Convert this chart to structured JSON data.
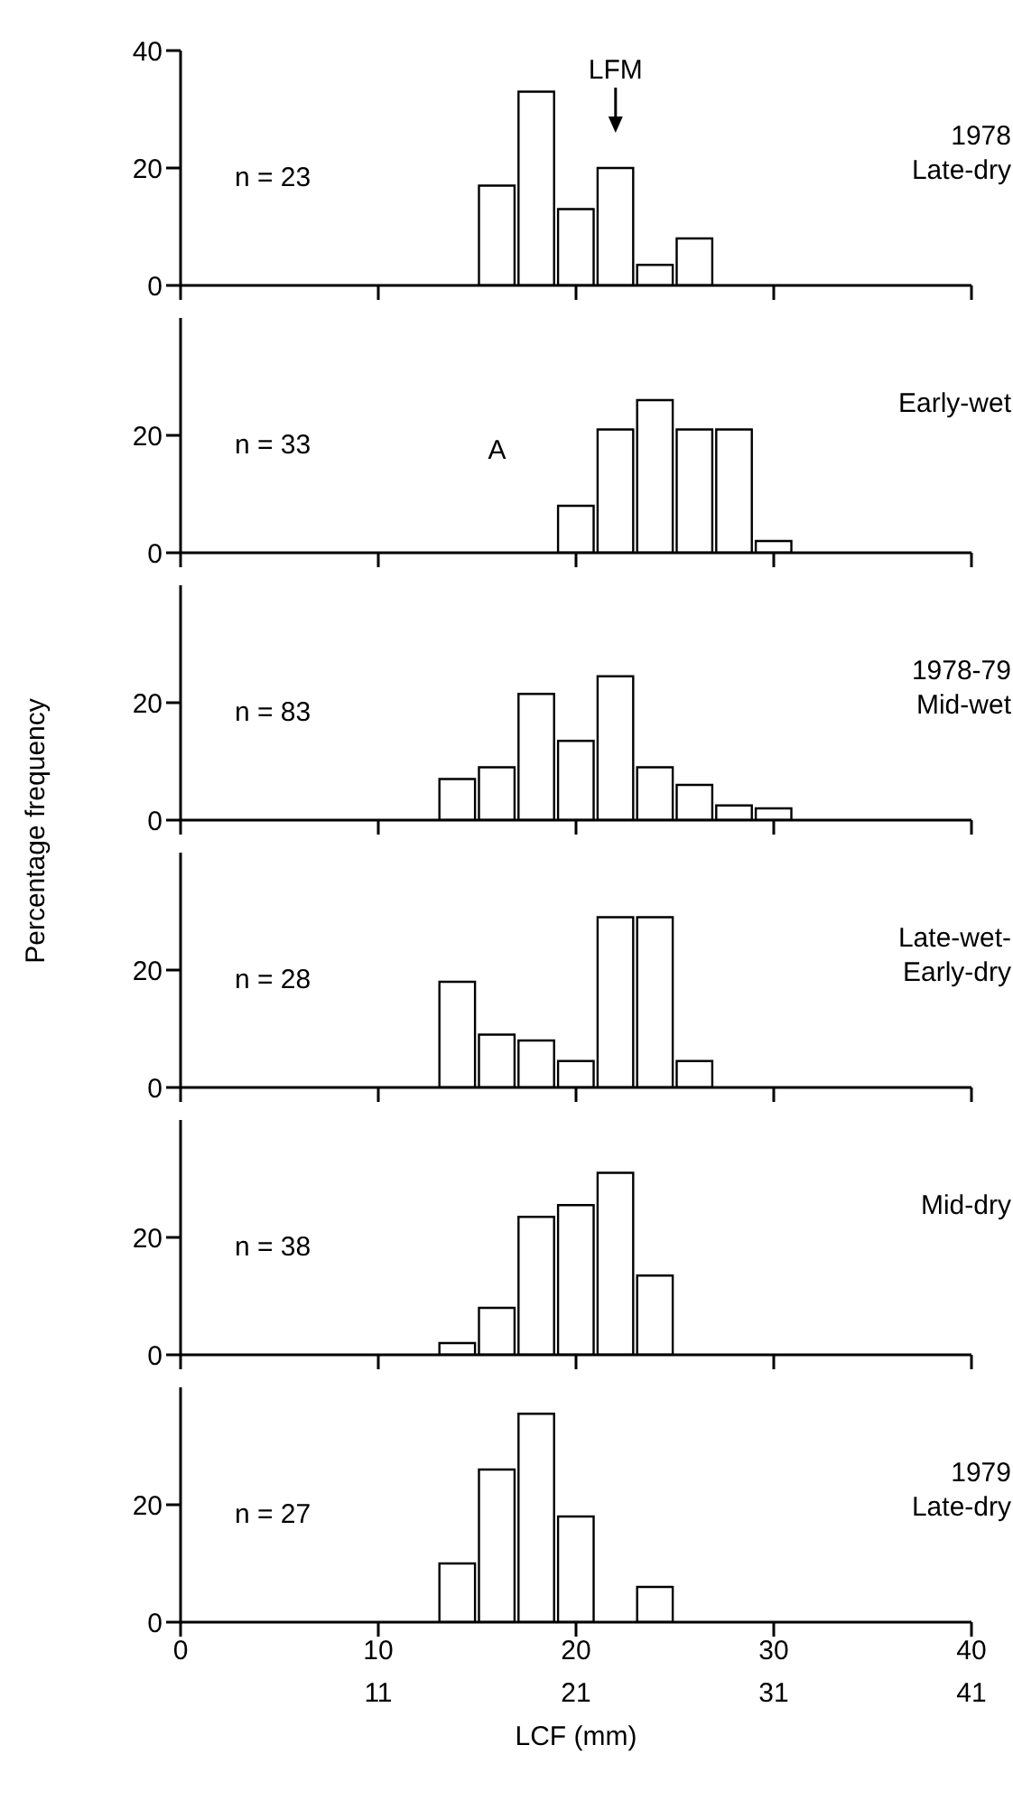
{
  "chart_data": [
    {
      "type": "histogram",
      "title": "1978\nLate-dry",
      "annotations": [
        "n = 23",
        "LFM"
      ],
      "bins": [
        15,
        17,
        19,
        21,
        23,
        25,
        27
      ],
      "values": [
        17,
        33,
        13,
        20,
        3.5,
        8
      ],
      "color": "#ffffff",
      "xlim": [
        0,
        40
      ],
      "ylim": [
        0,
        40
      ],
      "yticks": [
        0,
        20,
        40
      ],
      "tick_labels": "y"
    },
    {
      "type": "histogram",
      "title": "Early-wet",
      "annotations": [
        "n = 33",
        "A"
      ],
      "bins": [
        19,
        21,
        23,
        25,
        27,
        29,
        31
      ],
      "values": [
        8,
        21,
        26,
        21,
        21,
        2
      ],
      "color": "#ffffff",
      "xlim": [
        0,
        40
      ],
      "ylim": [
        0,
        40
      ],
      "yticks": [
        0,
        20
      ],
      "tick_labels": "y"
    },
    {
      "type": "histogram",
      "title": "1978-79\nMid-wet",
      "ylabel": "Percentage frequency",
      "annotations": [
        "n = 83"
      ],
      "bins": [
        13,
        15,
        17,
        19,
        21,
        23,
        25,
        27,
        29,
        31
      ],
      "values": [
        7,
        9,
        21.5,
        13.5,
        24.5,
        9,
        6,
        2.5,
        2
      ],
      "color": "#ffffff",
      "xlim": [
        0,
        40
      ],
      "ylim": [
        0,
        40
      ],
      "yticks": [
        0,
        20
      ],
      "tick_labels": "y"
    },
    {
      "type": "histogram",
      "title": "Late-wet-\nEarly-dry",
      "annotations": [
        "n = 28"
      ],
      "bins": [
        13,
        15,
        17,
        19,
        21,
        23,
        25,
        27
      ],
      "values": [
        18,
        9,
        8,
        4.5,
        29,
        29,
        4.5
      ],
      "color": "#ffffff",
      "xlim": [
        0,
        40
      ],
      "ylim": [
        0,
        40
      ],
      "yticks": [
        0,
        20
      ],
      "tick_labels": "y"
    },
    {
      "type": "histogram",
      "title": "Mid-dry",
      "annotations": [
        "n = 38"
      ],
      "bins": [
        13,
        15,
        17,
        19,
        21,
        23,
        25
      ],
      "values": [
        2,
        8,
        23.5,
        25.5,
        31,
        13.5
      ],
      "color": "#ffffff",
      "xlim": [
        0,
        40
      ],
      "ylim": [
        0,
        40
      ],
      "yticks": [
        0,
        20
      ],
      "tick_labels": "y"
    },
    {
      "type": "histogram",
      "title": "1979\nLate-dry",
      "xlabel": "LCF (mm)",
      "annotations": [
        "n = 27"
      ],
      "bins": [
        13,
        15,
        17,
        19,
        21,
        23,
        25
      ],
      "values": [
        10,
        26,
        35.5,
        18,
        0,
        6
      ],
      "color": "#ffffff",
      "xlim": [
        0,
        40
      ],
      "xticks": [
        0,
        10,
        20,
        30,
        40
      ],
      "x2lim": [
        1,
        41
      ],
      "x2ticks": [
        11,
        21,
        31,
        41
      ],
      "ylim": [
        0,
        40
      ],
      "yticks": [
        0,
        20
      ]
    }
  ]
}
